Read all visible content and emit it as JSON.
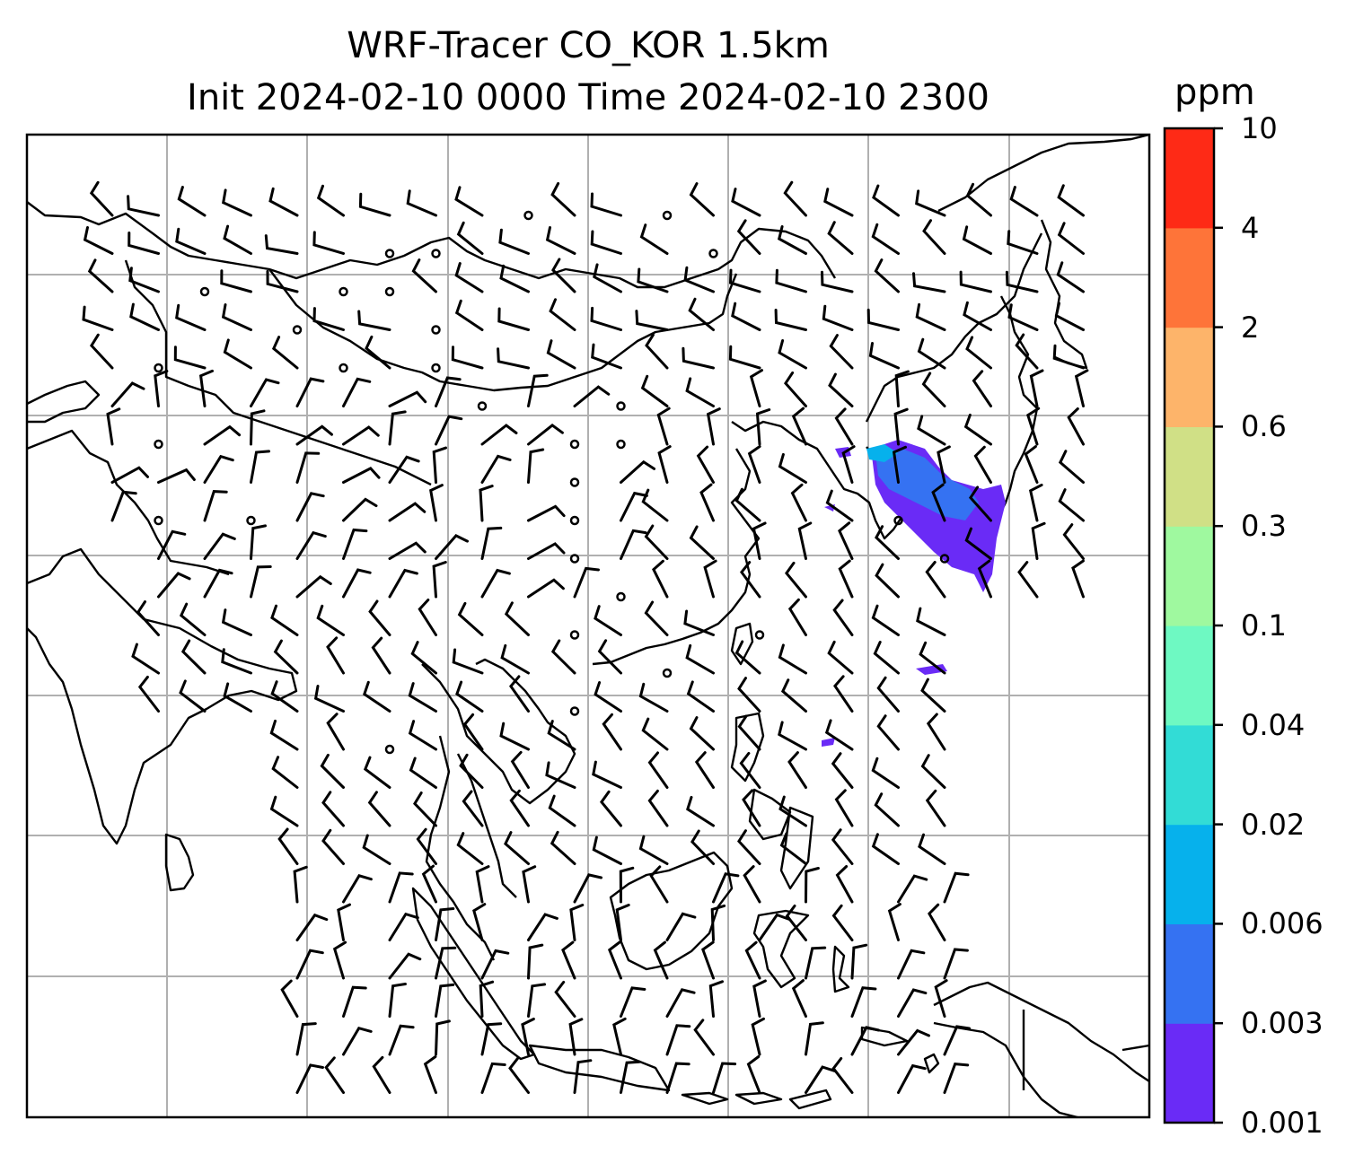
{
  "title": {
    "line1": "WRF-Tracer CO_KOR 1.5km",
    "line2": "Init 2024-02-10 0000 Time 2024-02-10 2300"
  },
  "colorbar": {
    "unit": "ppm",
    "levels": [
      "0.001",
      "0.003",
      "0.006",
      "0.02",
      "0.04",
      "0.1",
      "0.3",
      "0.6",
      "2",
      "4",
      "10"
    ],
    "colors": [
      "#6a2bf6",
      "#3572f2",
      "#06b1ec",
      "#32dcd6",
      "#6ef9c2",
      "#9ff99f",
      "#d0e086",
      "#fdb46a",
      "#fe7439",
      "#fe2a16"
    ]
  },
  "map": {
    "frame_color": "#000000",
    "grid_color": "#b0b0b0",
    "coastline_color": "#000000",
    "barb_color": "#000000"
  }
}
